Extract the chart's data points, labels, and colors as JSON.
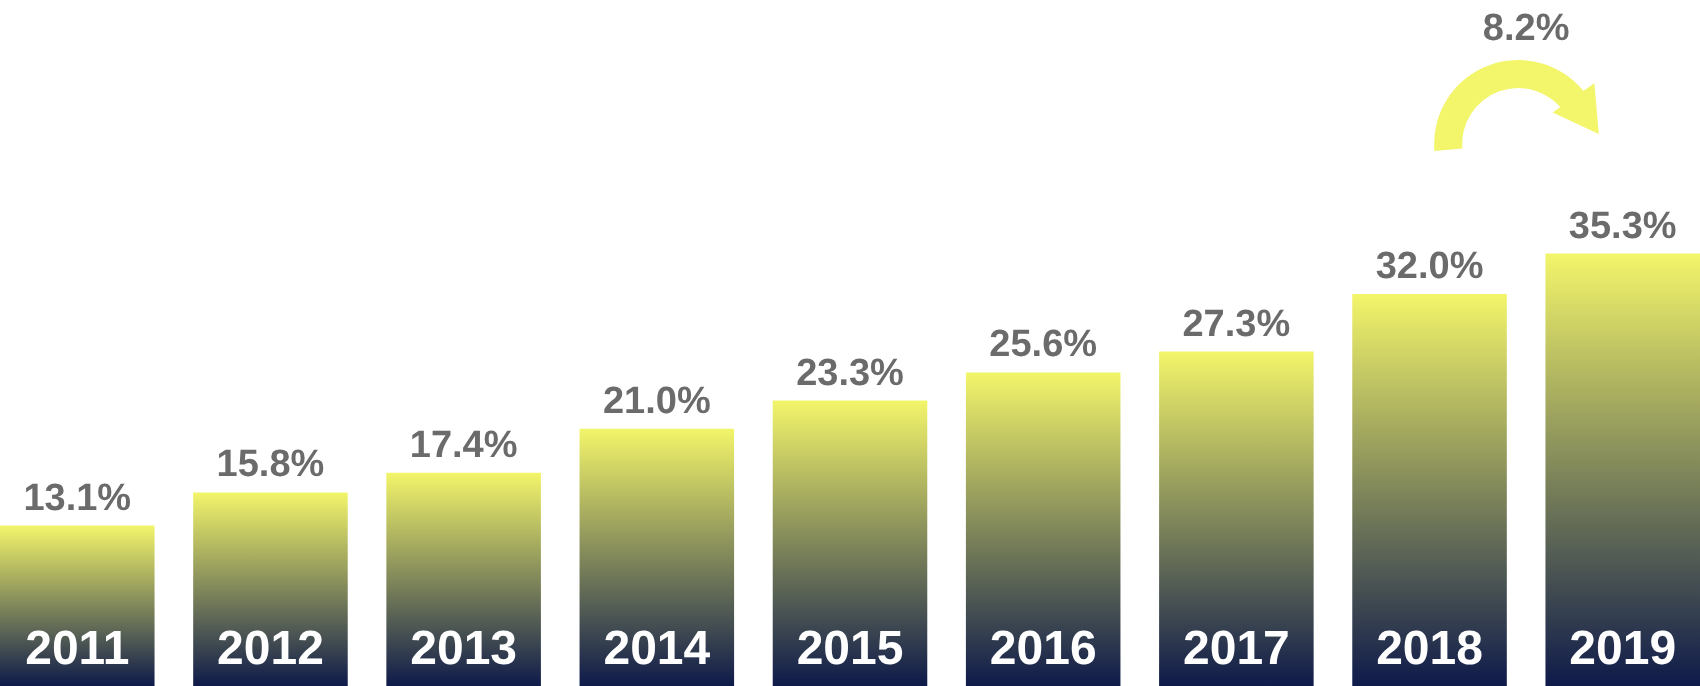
{
  "chart_data": {
    "type": "bar",
    "categories": [
      "2011",
      "2012",
      "2013",
      "2014",
      "2015",
      "2016",
      "2017",
      "2018",
      "2019"
    ],
    "values": [
      13.1,
      15.8,
      17.4,
      21.0,
      23.3,
      25.6,
      27.3,
      32.0,
      35.3
    ],
    "value_labels": [
      "13.1%",
      "15.8%",
      "17.4%",
      "21.0%",
      "23.3%",
      "25.6%",
      "27.3%",
      "32.0%",
      "35.3%"
    ],
    "color": "#f3f56a",
    "ylim": [
      0,
      56
    ],
    "annotations": [
      "8.2%"
    ]
  }
}
